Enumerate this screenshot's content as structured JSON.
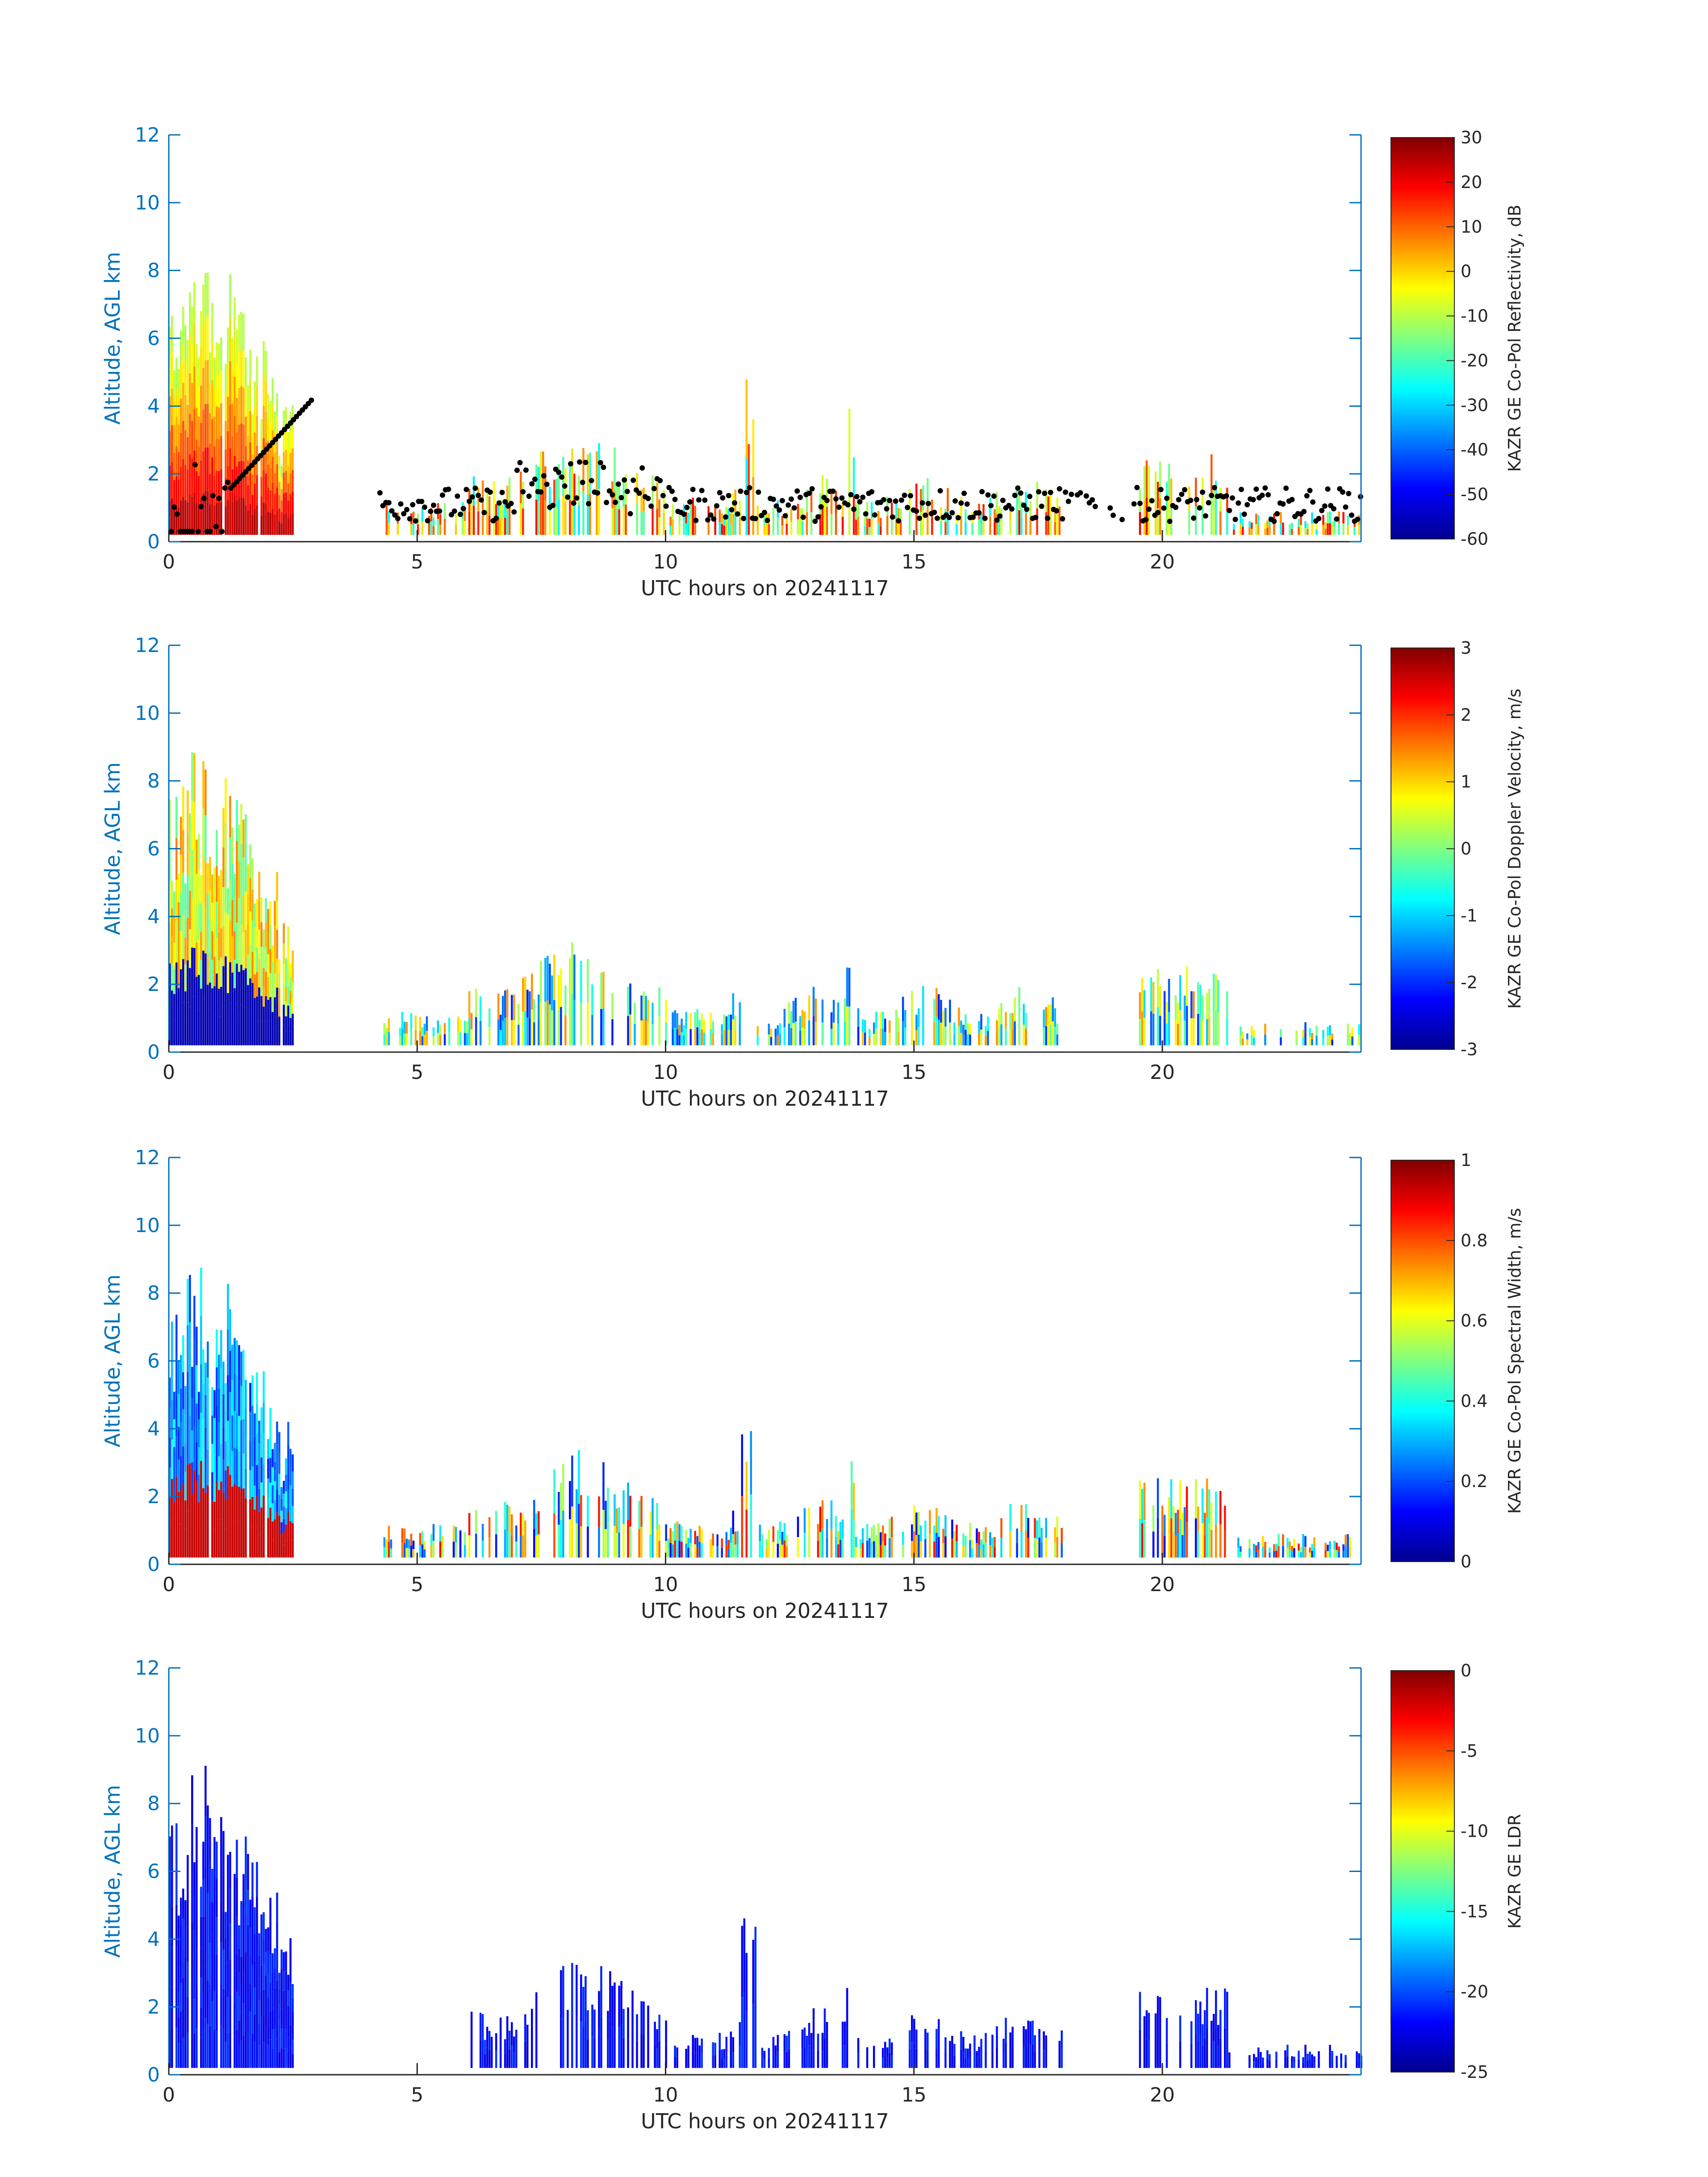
{
  "chart_data": [
    {
      "type": "heatmap",
      "xlabel": "UTC hours on 20241117",
      "ylabel": "Altitude, AGL km",
      "xlim": [
        0,
        24
      ],
      "ylim": [
        0,
        12
      ],
      "xticks": [
        "0",
        "5",
        "10",
        "15",
        "20"
      ],
      "yticks": [
        "0",
        "2",
        "4",
        "6",
        "8",
        "10",
        "12"
      ],
      "colorbar": {
        "label": "KAZR GE Co-Pol Reflectivity, dB",
        "range": [
          -60,
          30
        ],
        "ticks": [
          "30",
          "20",
          "10",
          "0",
          "-10",
          "-20",
          "-30",
          "-40",
          "-50",
          "-60"
        ],
        "colormap": "jet"
      },
      "field": "reflectivity",
      "overlay": "black cloud-base points"
    },
    {
      "type": "heatmap",
      "xlabel": "UTC hours on 20241117",
      "ylabel": "Altitude, AGL km",
      "xlim": [
        0,
        24
      ],
      "ylim": [
        0,
        12
      ],
      "xticks": [
        "0",
        "5",
        "10",
        "15",
        "20"
      ],
      "yticks": [
        "0",
        "2",
        "4",
        "6",
        "8",
        "10",
        "12"
      ],
      "colorbar": {
        "label": "KAZR GE Co-Pol Doppler Velocity, m/s",
        "range": [
          -3,
          3
        ],
        "ticks": [
          "3",
          "2",
          "1",
          "0",
          "-1",
          "-2",
          "-3"
        ],
        "colormap": "jet"
      },
      "field": "velocity"
    },
    {
      "type": "heatmap",
      "xlabel": "UTC hours on 20241117",
      "ylabel": "Altitude, AGL km",
      "xlim": [
        0,
        24
      ],
      "ylim": [
        0,
        12
      ],
      "xticks": [
        "0",
        "5",
        "10",
        "15",
        "20"
      ],
      "yticks": [
        "0",
        "2",
        "4",
        "6",
        "8",
        "10",
        "12"
      ],
      "colorbar": {
        "label": "KAZR GE Co-Pol Spectral Width, m/s",
        "range": [
          0,
          1
        ],
        "ticks": [
          "1",
          "0.8",
          "0.6",
          "0.4",
          "0.2",
          "0"
        ],
        "colormap": "jet"
      },
      "field": "width"
    },
    {
      "type": "heatmap",
      "xlabel": "UTC hours on 20241117",
      "ylabel": "Altitude, AGL km",
      "xlim": [
        0,
        24
      ],
      "ylim": [
        0,
        12
      ],
      "xticks": [
        "0",
        "5",
        "10",
        "15",
        "20"
      ],
      "yticks": [
        "0",
        "2",
        "4",
        "6",
        "8",
        "10",
        "12"
      ],
      "colorbar": {
        "label": "KAZR GE LDR",
        "range": [
          -25,
          0
        ],
        "ticks": [
          "0",
          "-5",
          "-10",
          "-15",
          "-20",
          "-25"
        ],
        "colormap": "jet"
      },
      "field": "ldr"
    }
  ],
  "colors": {
    "axis": "#0072BD",
    "text": "#262626",
    "overlay_points": "#000000"
  }
}
